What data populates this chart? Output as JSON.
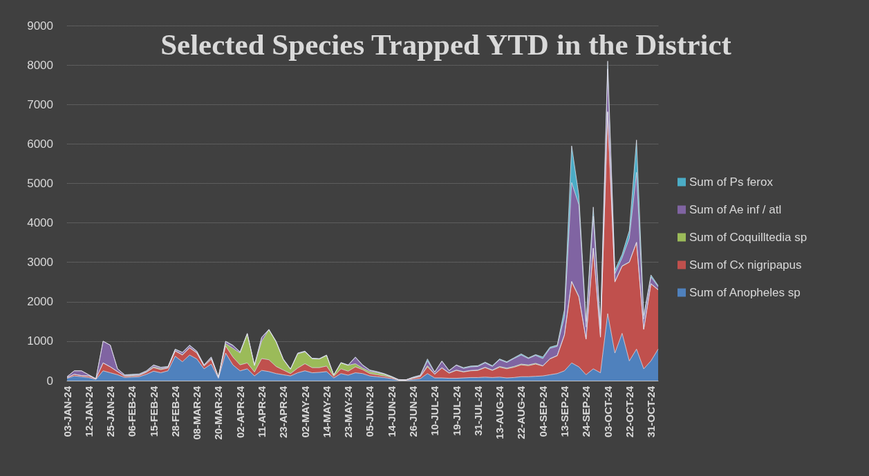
{
  "chart_data": {
    "type": "area",
    "title": "Selected Species Trapped YTD in the District",
    "categories": [
      "03-JAN-24",
      null,
      null,
      "12-JAN-24",
      null,
      null,
      "25-JAN-24",
      null,
      null,
      "06-FEB-24",
      null,
      null,
      "15-FEB-24",
      null,
      null,
      "28-FEB-24",
      null,
      null,
      "08-MAR-24",
      null,
      null,
      "20-MAR-24",
      null,
      null,
      "02-APR-24",
      null,
      null,
      "11-APR-24",
      null,
      null,
      "23-APR-24",
      null,
      null,
      "02-MAY-24",
      null,
      null,
      "14-MAY-24",
      null,
      null,
      "23-MAY-24",
      null,
      null,
      "05-JUN-24",
      null,
      null,
      "14-JUN-24",
      null,
      null,
      "26-JUN-24",
      null,
      null,
      "10-JUL-24",
      null,
      null,
      "19-JUL-24",
      null,
      null,
      "31-JUL-24",
      null,
      null,
      "13-AUG-24",
      null,
      null,
      "22-AUG-24",
      null,
      null,
      "04-SEP-24",
      null,
      null,
      "13-SEP-24",
      null,
      null,
      "24-SEP-24",
      null,
      null,
      "03-OCT-24",
      null,
      null,
      "22-OCT-24",
      null,
      null,
      "31-OCT-24",
      null
    ],
    "series": [
      {
        "name": "Sum of Anopheles sp",
        "color": "#4f81bd",
        "values": [
          60,
          120,
          100,
          80,
          30,
          250,
          200,
          150,
          80,
          90,
          100,
          160,
          240,
          200,
          250,
          620,
          480,
          650,
          550,
          300,
          420,
          60,
          700,
          400,
          250,
          300,
          120,
          260,
          230,
          180,
          150,
          120,
          200,
          250,
          200,
          210,
          230,
          70,
          180,
          140,
          200,
          180,
          120,
          100,
          80,
          50,
          10,
          10,
          30,
          50,
          180,
          70,
          70,
          60,
          60,
          70,
          80,
          80,
          90,
          80,
          90,
          70,
          80,
          100,
          100,
          110,
          120,
          150,
          180,
          250,
          450,
          350,
          150,
          300,
          200,
          1700,
          700,
          1200,
          500,
          800,
          300,
          500,
          800
        ]
      },
      {
        "name": "Sum of Cx nigripapus",
        "color": "#c0504d",
        "values": [
          20,
          40,
          30,
          40,
          20,
          200,
          150,
          80,
          30,
          30,
          30,
          50,
          90,
          80,
          70,
          130,
          170,
          180,
          150,
          70,
          120,
          20,
          180,
          200,
          150,
          150,
          100,
          300,
          300,
          180,
          120,
          60,
          120,
          180,
          130,
          120,
          140,
          40,
          120,
          100,
          150,
          100,
          60,
          50,
          40,
          30,
          10,
          10,
          30,
          50,
          170,
          90,
          250,
          130,
          200,
          150,
          170,
          180,
          240,
          180,
          250,
          230,
          260,
          300,
          280,
          310,
          250,
          400,
          450,
          900,
          2050,
          1770,
          900,
          3050,
          900,
          5100,
          1800,
          1700,
          2500,
          2700,
          1000,
          1950,
          1500
        ]
      },
      {
        "name": "Sum of Coquilltedia sp",
        "color": "#9bbb59",
        "values": [
          0,
          0,
          0,
          0,
          0,
          0,
          0,
          0,
          10,
          10,
          10,
          10,
          20,
          20,
          10,
          10,
          10,
          10,
          10,
          10,
          20,
          10,
          60,
          220,
          300,
          730,
          160,
          440,
          760,
          620,
          260,
          110,
          360,
          300,
          230,
          220,
          270,
          30,
          150,
          150,
          80,
          40,
          50,
          50,
          40,
          20,
          0,
          0,
          10,
          10,
          30,
          10,
          10,
          10,
          10,
          10,
          10,
          10,
          10,
          10,
          20,
          20,
          20,
          20,
          20,
          20,
          10,
          10,
          10,
          20,
          20,
          20,
          10,
          10,
          10,
          20,
          10,
          10,
          10,
          10,
          10,
          10,
          10
        ]
      },
      {
        "name": "Sum of Ae inf / atl",
        "color": "#8064a2",
        "values": [
          20,
          90,
          120,
          30,
          0,
          550,
          550,
          70,
          20,
          20,
          20,
          20,
          40,
          30,
          20,
          30,
          50,
          50,
          30,
          20,
          30,
          10,
          50,
          70,
          20,
          10,
          10,
          90,
          0,
          10,
          10,
          0,
          10,
          10,
          0,
          0,
          0,
          0,
          0,
          0,
          160,
          70,
          30,
          20,
          10,
          0,
          0,
          0,
          10,
          20,
          120,
          40,
          160,
          50,
          120,
          80,
          90,
          90,
          110,
          90,
          170,
          140,
          200,
          230,
          160,
          200,
          180,
          260,
          230,
          450,
          2500,
          2320,
          300,
          810,
          200,
          1080,
          200,
          200,
          600,
          1770,
          250,
          170,
          70
        ]
      },
      {
        "name": "Sum of Ps ferox",
        "color": "#4bacc6",
        "values": [
          0,
          0,
          0,
          0,
          0,
          0,
          0,
          0,
          10,
          10,
          10,
          10,
          10,
          10,
          10,
          10,
          10,
          10,
          10,
          0,
          10,
          0,
          10,
          10,
          10,
          10,
          10,
          10,
          10,
          10,
          10,
          10,
          10,
          10,
          10,
          10,
          10,
          10,
          10,
          10,
          10,
          10,
          10,
          10,
          10,
          10,
          10,
          0,
          10,
          10,
          50,
          10,
          10,
          10,
          10,
          20,
          20,
          20,
          20,
          20,
          20,
          20,
          20,
          30,
          20,
          20,
          40,
          30,
          30,
          180,
          930,
          240,
          140,
          230,
          90,
          200,
          90,
          90,
          190,
          820,
          90,
          50,
          30
        ]
      }
    ],
    "stacked": true,
    "ylim": [
      0,
      9000
    ],
    "yticks": [
      0,
      1000,
      2000,
      3000,
      4000,
      5000,
      6000,
      7000,
      8000,
      9000
    ],
    "grid": "y",
    "legend": "right",
    "marker": "none"
  }
}
